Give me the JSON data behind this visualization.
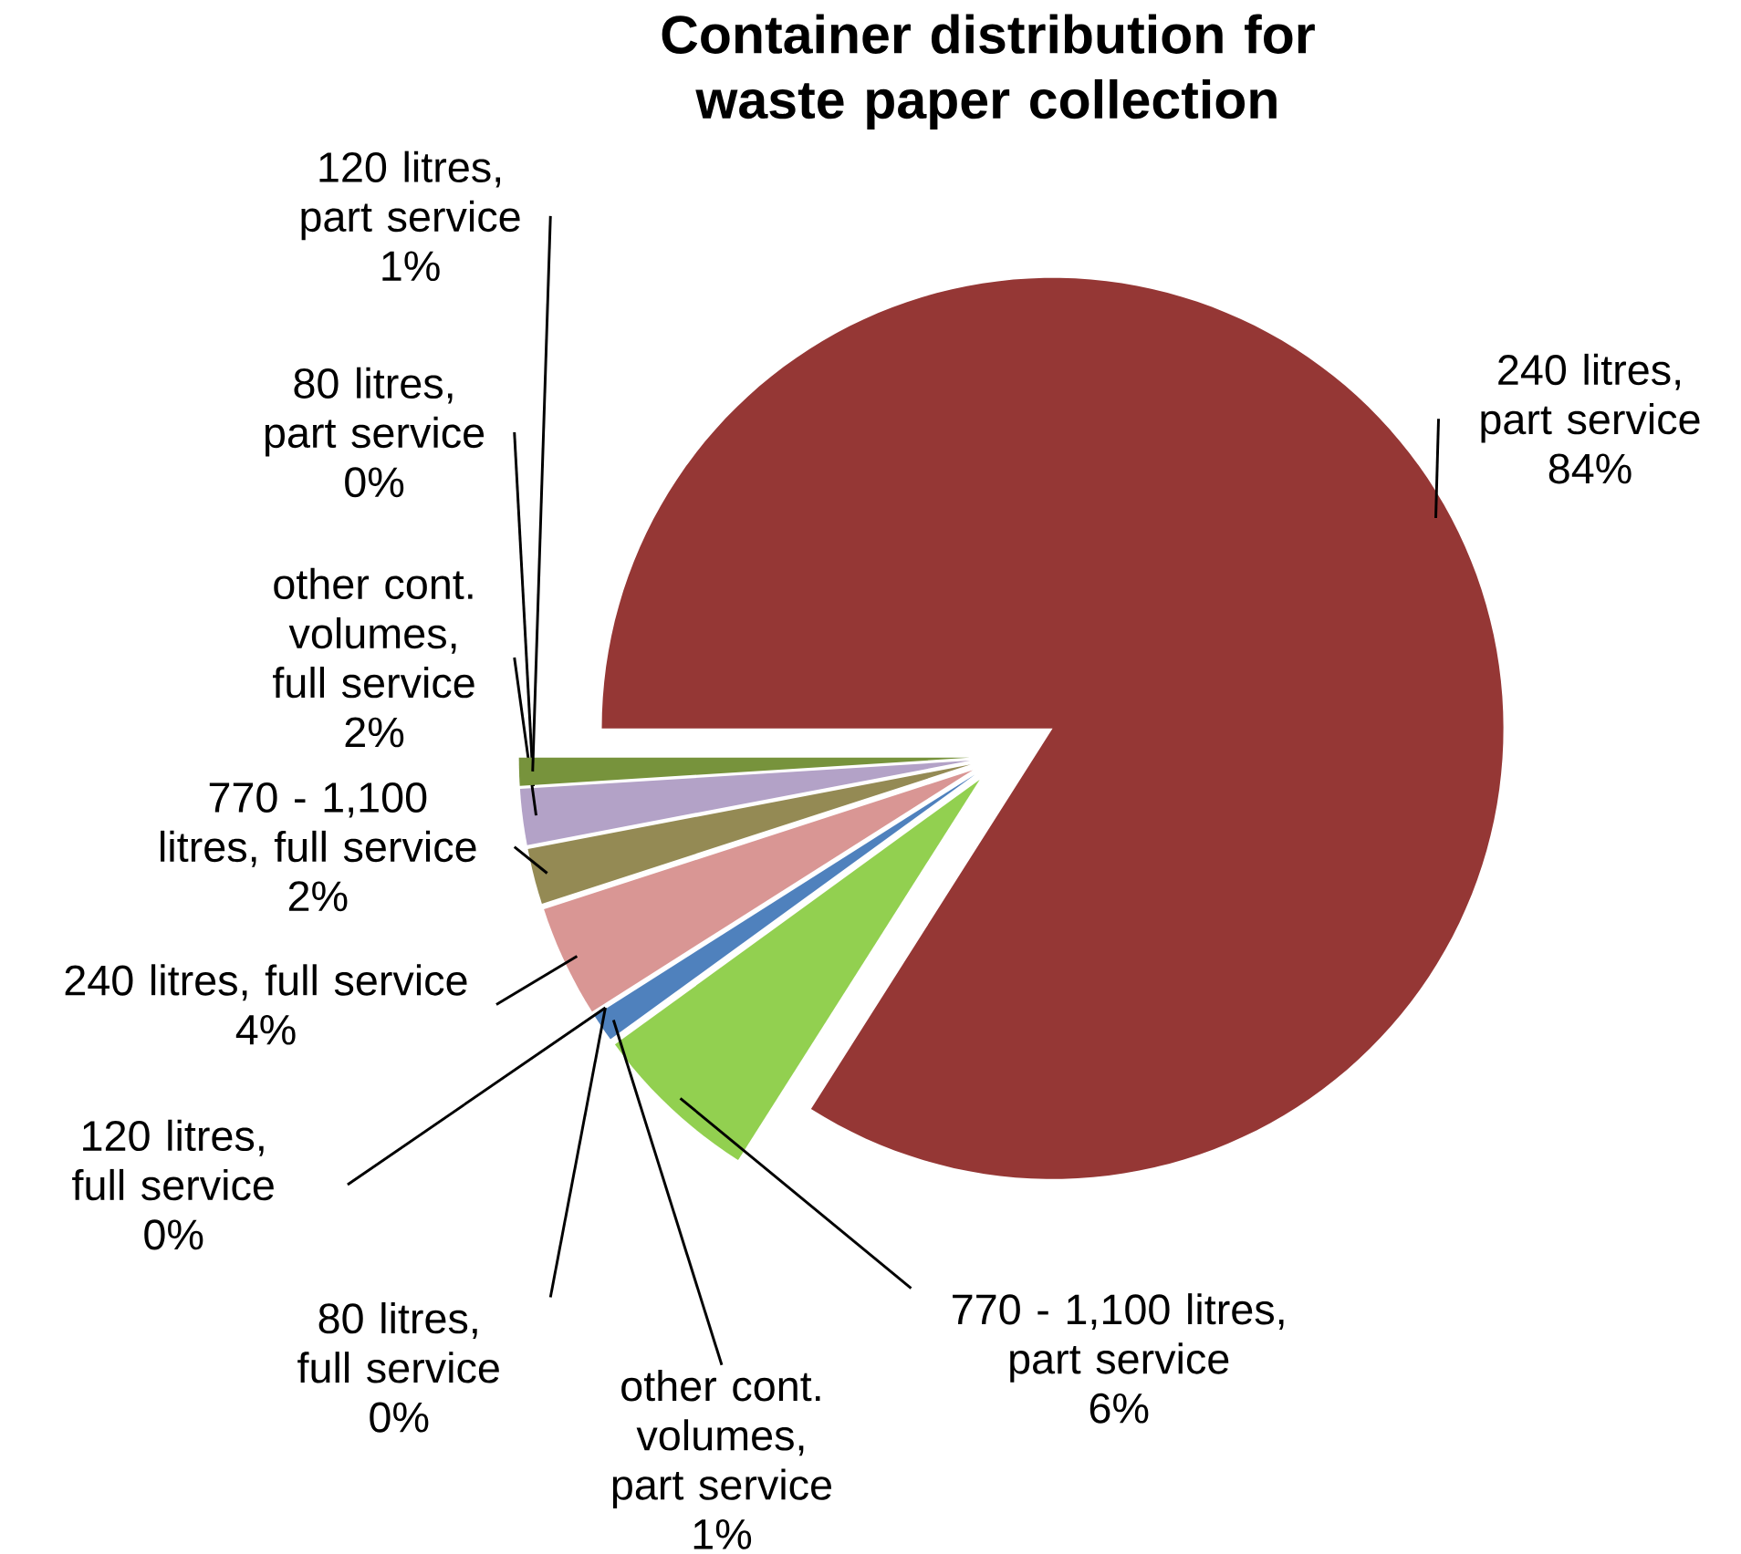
{
  "chart_data": {
    "type": "pie",
    "title": "Container distribution for waste paper collection",
    "categories": [
      "240 litres, part service",
      "770 - 1,100 litres, part service",
      "other cont. volumes, part service",
      "80 litres, full service",
      "120 litres, full service",
      "240 litres, full service",
      "770 - 1,100 litres, full service",
      "other cont. volumes, full service",
      "80 litres, part service",
      "120 litres, part service"
    ],
    "values": [
      84,
      6,
      1,
      0,
      0,
      4,
      2,
      2,
      0,
      1
    ],
    "value_labels": [
      "84%",
      "6%",
      "1%",
      "0%",
      "0%",
      "4%",
      "2%",
      "2%",
      "0%",
      "1%"
    ],
    "colors": [
      "#953735",
      "#92d050",
      "#4f81bd",
      "#2c4d75",
      "#7030a0",
      "#d99694",
      "#948a54",
      "#b3a2c7",
      "#c0504d",
      "#77933c"
    ]
  }
}
